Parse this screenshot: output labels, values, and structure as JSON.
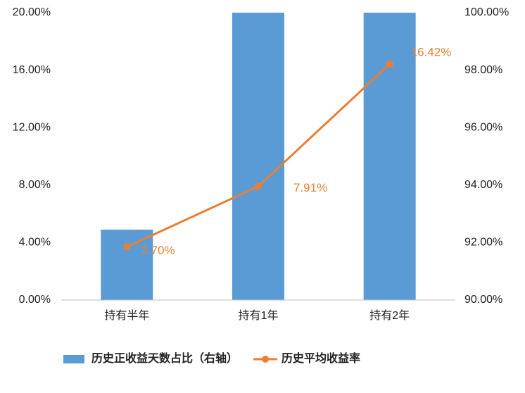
{
  "chart_data": {
    "type": "bar_line",
    "categories": [
      "持有半年",
      "持有1年",
      "持有2年"
    ],
    "series": [
      {
        "name": "历史正收益天数占比（右轴）",
        "type": "bar",
        "axis": "y2",
        "color": "#5b9bd5",
        "values": [
          92.45,
          100,
          100
        ]
      },
      {
        "name": "历史平均收益率",
        "type": "line",
        "color": "#ed7d31",
        "values": [
          3.7,
          7.91,
          16.42
        ],
        "value_labels": [
          "3.70%",
          "7.91%",
          "16.42%"
        ]
      }
    ],
    "ylim": [
      0,
      20
    ],
    "yticks": [
      {
        "value": 0,
        "label": "0.00%"
      },
      {
        "value": 4,
        "label": "4.00%"
      },
      {
        "value": 8,
        "label": "8.00%"
      },
      {
        "value": 12,
        "label": "12.00%"
      },
      {
        "value": 16,
        "label": "16.00%"
      },
      {
        "value": 20,
        "label": "20.00%"
      }
    ],
    "y2lim": [
      90,
      100
    ],
    "y2ticks": [
      {
        "value": 90,
        "label": "90.00%"
      },
      {
        "value": 92,
        "label": "92.00%"
      },
      {
        "value": 94,
        "label": "94.00%"
      },
      {
        "value": 96,
        "label": "96.00%"
      },
      {
        "value": 98,
        "label": "98.00%"
      },
      {
        "value": 100,
        "label": "100.00%"
      }
    ],
    "legend": "bottom"
  }
}
